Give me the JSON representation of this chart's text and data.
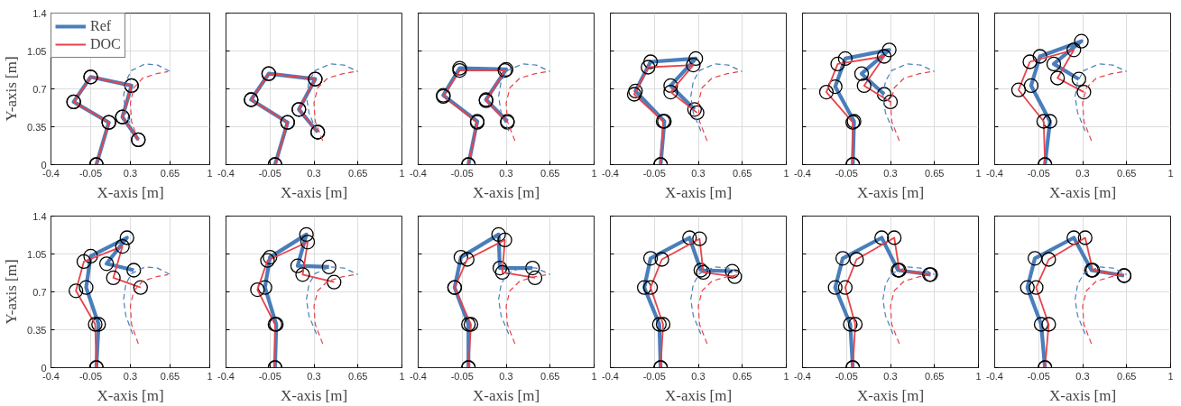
{
  "chart_data": [
    {
      "type": "line",
      "xlabel": "X-axis [m]",
      "ylabel": "Y-axis [m]",
      "xlim": [
        -0.4,
        1
      ],
      "ylim": [
        0,
        1.4
      ],
      "xticks": [
        -0.4,
        -0.05,
        0.3,
        0.65,
        1
      ],
      "yticks": [
        0,
        0.35,
        0.7,
        1.05,
        1.4
      ],
      "grid": true,
      "legend": "top left",
      "series": [
        {
          "name": "Ref",
          "color": "#4a7ebb",
          "marker": "circle",
          "x": [
            0,
            0.11,
            -0.2,
            -0.05,
            0.31,
            0.23,
            0.37
          ],
          "values": [
            0,
            0.39,
            0.58,
            0.81,
            0.73,
            0.44,
            0.23
          ]
        },
        {
          "name": "DOC",
          "color": "#e8434b",
          "marker": "circle",
          "x": [
            0,
            0.11,
            -0.2,
            -0.05,
            0.31,
            0.23,
            0.37
          ],
          "values": [
            0,
            0.39,
            0.58,
            0.81,
            0.73,
            0.44,
            0.23
          ]
        },
        {
          "color": "#4a7ebb",
          "line_style": "dashed",
          "x": [
            0.32,
            0.26,
            0.24,
            0.26,
            0.31,
            0.43,
            0.54,
            0.65
          ],
          "values": [
            0.31,
            0.48,
            0.63,
            0.77,
            0.87,
            0.93,
            0.92,
            0.86
          ]
        },
        {
          "color": "#e8434b",
          "line_style": "dashed",
          "x": [
            0.37,
            0.31,
            0.3,
            0.33,
            0.41,
            0.53,
            0.63
          ],
          "values": [
            0.22,
            0.4,
            0.57,
            0.71,
            0.8,
            0.84,
            0.86
          ]
        }
      ]
    },
    {
      "type": "line",
      "xlabel": "X-axis [m]",
      "xlim": [
        -0.4,
        1
      ],
      "ylim": [
        0,
        1.4
      ],
      "xticks": [
        -0.4,
        -0.05,
        0.3,
        0.65,
        1
      ],
      "yticks": [
        0,
        0.35,
        0.7,
        1.05,
        1.4
      ],
      "grid": true,
      "tick_labels": "x",
      "series": [
        {
          "color": "#4a7ebb",
          "marker": "circle",
          "x": [
            -0.01,
            0.09,
            -0.2,
            -0.06,
            0.31,
            0.18,
            0.33
          ],
          "values": [
            0,
            0.39,
            0.6,
            0.84,
            0.79,
            0.51,
            0.3
          ]
        },
        {
          "color": "#e8434b",
          "marker": "circle",
          "x": [
            -0.01,
            0.09,
            -0.2,
            -0.06,
            0.31,
            0.18,
            0.33
          ],
          "values": [
            0,
            0.39,
            0.6,
            0.84,
            0.79,
            0.51,
            0.3
          ]
        },
        {
          "color": "#4a7ebb",
          "line_style": "dashed",
          "x": [
            0.32,
            0.26,
            0.24,
            0.26,
            0.31,
            0.43,
            0.54,
            0.65
          ],
          "values": [
            0.31,
            0.48,
            0.63,
            0.77,
            0.87,
            0.93,
            0.92,
            0.86
          ]
        },
        {
          "color": "#e8434b",
          "line_style": "dashed",
          "x": [
            0.37,
            0.31,
            0.3,
            0.33,
            0.41,
            0.53,
            0.63
          ],
          "values": [
            0.22,
            0.4,
            0.57,
            0.71,
            0.8,
            0.84,
            0.86
          ]
        }
      ]
    },
    {
      "type": "line",
      "xlabel": "X-axis [m]",
      "xlim": [
        -0.4,
        1
      ],
      "ylim": [
        0,
        1.4
      ],
      "xticks": [
        -0.4,
        -0.05,
        0.3,
        0.65,
        1
      ],
      "yticks": [
        0,
        0.35,
        0.7,
        1.05,
        1.4
      ],
      "grid": true,
      "tick_labels": "x",
      "series": [
        {
          "color": "#4a7ebb",
          "marker": "circle",
          "x": [
            0,
            0.07,
            -0.2,
            -0.07,
            0.3,
            0.14,
            0.31
          ],
          "values": [
            0,
            0.4,
            0.64,
            0.89,
            0.88,
            0.6,
            0.4
          ]
        },
        {
          "color": "#e8434b",
          "marker": "circle",
          "x": [
            0,
            0.07,
            -0.2,
            -0.07,
            0.29,
            0.14,
            0.31
          ],
          "values": [
            0,
            0.39,
            0.63,
            0.87,
            0.87,
            0.59,
            0.39
          ]
        },
        {
          "color": "#4a7ebb",
          "line_style": "dashed",
          "x": [
            0.32,
            0.26,
            0.24,
            0.26,
            0.31,
            0.43,
            0.54,
            0.65
          ],
          "values": [
            0.31,
            0.48,
            0.63,
            0.77,
            0.87,
            0.93,
            0.92,
            0.86
          ]
        },
        {
          "color": "#e8434b",
          "line_style": "dashed",
          "x": [
            0.37,
            0.31,
            0.3,
            0.33,
            0.41,
            0.53,
            0.63
          ],
          "values": [
            0.22,
            0.4,
            0.57,
            0.71,
            0.8,
            0.84,
            0.86
          ]
        }
      ]
    },
    {
      "type": "line",
      "xlabel": "X-axis [m]",
      "xlim": [
        -0.4,
        1
      ],
      "ylim": [
        0,
        1.4
      ],
      "xticks": [
        -0.4,
        -0.05,
        0.3,
        0.65,
        1
      ],
      "yticks": [
        0,
        0.35,
        0.7,
        1.05,
        1.4
      ],
      "grid": true,
      "tick_labels": "x",
      "series": [
        {
          "color": "#4a7ebb",
          "marker": "circle",
          "x": [
            0,
            0.03,
            -0.2,
            -0.08,
            0.28,
            0.08,
            0.27
          ],
          "values": [
            0,
            0.4,
            0.68,
            0.95,
            0.98,
            0.73,
            0.51
          ]
        },
        {
          "color": "#e8434b",
          "marker": "circle",
          "x": [
            0,
            0.02,
            -0.21,
            -0.1,
            0.26,
            0.08,
            0.29
          ],
          "values": [
            0,
            0.4,
            0.65,
            0.9,
            0.92,
            0.67,
            0.48
          ]
        },
        {
          "color": "#4a7ebb",
          "line_style": "dashed",
          "x": [
            0.32,
            0.26,
            0.24,
            0.26,
            0.31,
            0.43,
            0.54,
            0.65
          ],
          "values": [
            0.31,
            0.48,
            0.63,
            0.77,
            0.87,
            0.93,
            0.92,
            0.86
          ]
        },
        {
          "color": "#e8434b",
          "line_style": "dashed",
          "x": [
            0.37,
            0.31,
            0.3,
            0.33,
            0.41,
            0.53,
            0.63
          ],
          "values": [
            0.22,
            0.4,
            0.57,
            0.71,
            0.8,
            0.84,
            0.86
          ]
        }
      ]
    },
    {
      "type": "line",
      "xlabel": "X-axis [m]",
      "xlim": [
        -0.4,
        1
      ],
      "ylim": [
        0,
        1.4
      ],
      "xticks": [
        -0.4,
        -0.05,
        0.3,
        0.65,
        1
      ],
      "yticks": [
        0,
        0.35,
        0.7,
        1.05,
        1.4
      ],
      "grid": true,
      "tick_labels": "x",
      "series": [
        {
          "color": "#4a7ebb",
          "marker": "circle",
          "x": [
            0,
            0.01,
            -0.14,
            -0.06,
            0.29,
            0.07,
            0.25
          ],
          "values": [
            0,
            0.4,
            0.72,
            0.98,
            1.06,
            0.84,
            0.65
          ]
        },
        {
          "color": "#e8434b",
          "marker": "circle",
          "x": [
            0,
            0,
            -0.21,
            -0.12,
            0.25,
            0.09,
            0.3
          ],
          "values": [
            0,
            0.39,
            0.67,
            0.93,
            1.0,
            0.73,
            0.58
          ]
        },
        {
          "color": "#4a7ebb",
          "line_style": "dashed",
          "x": [
            0.32,
            0.26,
            0.24,
            0.26,
            0.31,
            0.43,
            0.54,
            0.65
          ],
          "values": [
            0.31,
            0.48,
            0.63,
            0.77,
            0.87,
            0.93,
            0.92,
            0.86
          ]
        },
        {
          "color": "#e8434b",
          "line_style": "dashed",
          "x": [
            0.37,
            0.31,
            0.3,
            0.33,
            0.41,
            0.53,
            0.63
          ],
          "values": [
            0.22,
            0.4,
            0.57,
            0.71,
            0.8,
            0.84,
            0.86
          ]
        }
      ]
    },
    {
      "type": "line",
      "xlabel": "X-axis [m]",
      "xlim": [
        -0.4,
        1
      ],
      "ylim": [
        0,
        1.4
      ],
      "xticks": [
        -0.4,
        -0.05,
        0.3,
        0.65,
        1
      ],
      "yticks": [
        0,
        0.35,
        0.7,
        1.05,
        1.4
      ],
      "grid": true,
      "tick_labels": "x",
      "series": [
        {
          "color": "#4a7ebb",
          "marker": "circle",
          "x": [
            0,
            0.04,
            -0.11,
            -0.04,
            0.29,
            0.07,
            0.27
          ],
          "values": [
            0,
            0.4,
            0.73,
            1.0,
            1.14,
            0.93,
            0.79
          ]
        },
        {
          "color": "#e8434b",
          "marker": "circle",
          "x": [
            0,
            -0.01,
            -0.21,
            -0.12,
            0.23,
            0.1,
            0.31
          ],
          "values": [
            0,
            0.4,
            0.69,
            0.95,
            1.06,
            0.8,
            0.67
          ]
        },
        {
          "color": "#4a7ebb",
          "line_style": "dashed",
          "x": [
            0.32,
            0.26,
            0.24,
            0.26,
            0.31,
            0.43,
            0.54,
            0.65
          ],
          "values": [
            0.31,
            0.48,
            0.63,
            0.77,
            0.87,
            0.93,
            0.92,
            0.86
          ]
        },
        {
          "color": "#e8434b",
          "line_style": "dashed",
          "x": [
            0.37,
            0.31,
            0.3,
            0.33,
            0.41,
            0.53,
            0.63
          ],
          "values": [
            0.22,
            0.4,
            0.57,
            0.71,
            0.8,
            0.84,
            0.86
          ]
        }
      ]
    },
    {
      "type": "line",
      "xlabel": "X-axis [m]",
      "ylabel": "Y-axis [m]",
      "xlim": [
        -0.4,
        1
      ],
      "ylim": [
        0,
        1.4
      ],
      "xticks": [
        -0.4,
        -0.05,
        0.3,
        0.65,
        1
      ],
      "yticks": [
        0,
        0.35,
        0.7,
        1.05,
        1.4
      ],
      "grid": true,
      "series": [
        {
          "color": "#4a7ebb",
          "marker": "circle",
          "x": [
            0,
            0.02,
            -0.09,
            -0.05,
            0.27,
            0.09,
            0.33
          ],
          "values": [
            0,
            0.4,
            0.74,
            1.03,
            1.2,
            0.96,
            0.9
          ]
        },
        {
          "color": "#e8434b",
          "marker": "circle",
          "x": [
            0,
            -0.01,
            -0.18,
            -0.11,
            0.23,
            0.15,
            0.39
          ],
          "values": [
            0,
            0.4,
            0.71,
            0.98,
            1.12,
            0.83,
            0.74
          ]
        },
        {
          "color": "#4a7ebb",
          "line_style": "dashed",
          "x": [
            0.32,
            0.26,
            0.24,
            0.26,
            0.31,
            0.43,
            0.54,
            0.65
          ],
          "values": [
            0.31,
            0.48,
            0.63,
            0.77,
            0.87,
            0.93,
            0.92,
            0.86
          ]
        },
        {
          "color": "#e8434b",
          "line_style": "dashed",
          "x": [
            0.37,
            0.31,
            0.3,
            0.33,
            0.41,
            0.53,
            0.63
          ],
          "values": [
            0.22,
            0.4,
            0.57,
            0.71,
            0.8,
            0.84,
            0.86
          ]
        }
      ]
    },
    {
      "type": "line",
      "xlabel": "X-axis [m]",
      "xlim": [
        -0.4,
        1
      ],
      "ylim": [
        0,
        1.4
      ],
      "xticks": [
        -0.4,
        -0.05,
        0.3,
        0.65,
        1
      ],
      "yticks": [
        0,
        0.35,
        0.7,
        1.05,
        1.4
      ],
      "grid": true,
      "tick_labels": "x",
      "series": [
        {
          "color": "#4a7ebb",
          "marker": "circle",
          "x": [
            -0.01,
            0,
            -0.09,
            -0.05,
            0.24,
            0.17,
            0.42
          ],
          "values": [
            0,
            0.4,
            0.74,
            1.02,
            1.23,
            0.94,
            0.93
          ]
        },
        {
          "color": "#e8434b",
          "marker": "circle",
          "x": [
            -0.01,
            -0.01,
            -0.15,
            -0.07,
            0.25,
            0.21,
            0.46
          ],
          "values": [
            0,
            0.4,
            0.72,
            0.99,
            1.16,
            0.86,
            0.79
          ]
        },
        {
          "color": "#4a7ebb",
          "line_style": "dashed",
          "x": [
            0.32,
            0.26,
            0.24,
            0.26,
            0.31,
            0.43,
            0.54,
            0.65
          ],
          "values": [
            0.31,
            0.48,
            0.63,
            0.77,
            0.87,
            0.93,
            0.92,
            0.86
          ]
        },
        {
          "color": "#e8434b",
          "line_style": "dashed",
          "x": [
            0.37,
            0.31,
            0.3,
            0.33,
            0.41,
            0.53,
            0.63
          ],
          "values": [
            0.22,
            0.4,
            0.57,
            0.71,
            0.8,
            0.84,
            0.86
          ]
        }
      ]
    },
    {
      "type": "line",
      "xlabel": "X-axis [m]",
      "xlim": [
        -0.4,
        1
      ],
      "ylim": [
        0,
        1.4
      ],
      "xticks": [
        -0.4,
        -0.05,
        0.3,
        0.65,
        1
      ],
      "yticks": [
        0,
        0.35,
        0.7,
        1.05,
        1.4
      ],
      "grid": true,
      "tick_labels": "x",
      "series": [
        {
          "color": "#4a7ebb",
          "marker": "circle",
          "x": [
            0,
            0,
            -0.11,
            -0.06,
            0.24,
            0.25,
            0.51
          ],
          "values": [
            0,
            0.4,
            0.74,
            1.02,
            1.23,
            0.92,
            0.92
          ]
        },
        {
          "color": "#e8434b",
          "marker": "circle",
          "x": [
            0,
            0.02,
            -0.11,
            -0.01,
            0.29,
            0.27,
            0.53
          ],
          "values": [
            0,
            0.4,
            0.74,
            1.0,
            1.18,
            0.88,
            0.83
          ]
        },
        {
          "color": "#4a7ebb",
          "line_style": "dashed",
          "x": [
            0.32,
            0.26,
            0.24,
            0.26,
            0.31,
            0.43,
            0.54,
            0.65
          ],
          "values": [
            0.31,
            0.48,
            0.63,
            0.77,
            0.87,
            0.93,
            0.92,
            0.86
          ]
        },
        {
          "color": "#e8434b",
          "line_style": "dashed",
          "x": [
            0.37,
            0.31,
            0.3,
            0.33,
            0.41,
            0.53,
            0.63
          ],
          "values": [
            0.22,
            0.4,
            0.57,
            0.71,
            0.8,
            0.84,
            0.86
          ]
        }
      ]
    },
    {
      "type": "line",
      "xlabel": "X-axis [m]",
      "xlim": [
        -0.4,
        1
      ],
      "ylim": [
        0,
        1.4
      ],
      "xticks": [
        -0.4,
        -0.05,
        0.3,
        0.65,
        1
      ],
      "yticks": [
        0,
        0.35,
        0.7,
        1.05,
        1.4
      ],
      "grid": true,
      "tick_labels": "x",
      "series": [
        {
          "color": "#4a7ebb",
          "marker": "circle",
          "x": [
            0,
            -0.01,
            -0.13,
            -0.08,
            0.23,
            0.32,
            0.57
          ],
          "values": [
            0,
            0.4,
            0.74,
            1.01,
            1.2,
            0.9,
            0.89
          ]
        },
        {
          "color": "#e8434b",
          "marker": "circle",
          "x": [
            0,
            0.02,
            -0.08,
            0.01,
            0.31,
            0.34,
            0.59
          ],
          "values": [
            0,
            0.4,
            0.74,
            1.0,
            1.19,
            0.88,
            0.84
          ]
        },
        {
          "color": "#4a7ebb",
          "line_style": "dashed",
          "x": [
            0.32,
            0.26,
            0.24,
            0.26,
            0.31,
            0.43,
            0.54,
            0.65
          ],
          "values": [
            0.31,
            0.48,
            0.63,
            0.77,
            0.87,
            0.93,
            0.92,
            0.86
          ]
        },
        {
          "color": "#e8434b",
          "line_style": "dashed",
          "x": [
            0.37,
            0.31,
            0.3,
            0.33,
            0.41,
            0.53,
            0.63
          ],
          "values": [
            0.22,
            0.4,
            0.57,
            0.71,
            0.8,
            0.84,
            0.86
          ]
        }
      ]
    },
    {
      "type": "line",
      "xlabel": "X-axis [m]",
      "xlim": [
        -0.4,
        1
      ],
      "ylim": [
        0,
        1.4
      ],
      "xticks": [
        -0.4,
        -0.05,
        0.3,
        0.65,
        1
      ],
      "yticks": [
        0,
        0.35,
        0.7,
        1.05,
        1.4
      ],
      "grid": true,
      "tick_labels": "x",
      "series": [
        {
          "color": "#4a7ebb",
          "marker": "circle",
          "x": [
            0,
            -0.02,
            -0.14,
            -0.08,
            0.23,
            0.36,
            0.62
          ],
          "values": [
            0,
            0.4,
            0.74,
            1.01,
            1.2,
            0.9,
            0.86
          ]
        },
        {
          "color": "#e8434b",
          "marker": "circle",
          "x": [
            0,
            0.02,
            -0.06,
            0.03,
            0.33,
            0.37,
            0.61
          ],
          "values": [
            0,
            0.4,
            0.74,
            1.0,
            1.2,
            0.9,
            0.86
          ]
        },
        {
          "color": "#4a7ebb",
          "line_style": "dashed",
          "x": [
            0.32,
            0.26,
            0.24,
            0.26,
            0.31,
            0.43,
            0.54,
            0.65
          ],
          "values": [
            0.31,
            0.48,
            0.63,
            0.77,
            0.87,
            0.93,
            0.92,
            0.86
          ]
        },
        {
          "color": "#e8434b",
          "line_style": "dashed",
          "x": [
            0.37,
            0.31,
            0.3,
            0.33,
            0.41,
            0.53,
            0.63
          ],
          "values": [
            0.22,
            0.4,
            0.57,
            0.71,
            0.8,
            0.84,
            0.86
          ]
        }
      ]
    },
    {
      "type": "line",
      "xlabel": "X-axis [m]",
      "xlim": [
        -0.4,
        1
      ],
      "ylim": [
        0,
        1.4
      ],
      "xticks": [
        -0.4,
        -0.05,
        0.3,
        0.65,
        1
      ],
      "yticks": [
        0,
        0.35,
        0.7,
        1.05,
        1.4
      ],
      "grid": true,
      "tick_labels": "x",
      "series": [
        {
          "color": "#4a7ebb",
          "marker": "circle",
          "x": [
            0,
            -0.03,
            -0.14,
            -0.08,
            0.23,
            0.37,
            0.63
          ],
          "values": [
            0,
            0.4,
            0.74,
            1.01,
            1.2,
            0.9,
            0.85
          ]
        },
        {
          "color": "#e8434b",
          "marker": "circle",
          "x": [
            0,
            0.03,
            -0.07,
            0.03,
            0.32,
            0.38,
            0.63
          ],
          "values": [
            0,
            0.4,
            0.74,
            1.0,
            1.2,
            0.9,
            0.85
          ]
        },
        {
          "color": "#4a7ebb",
          "line_style": "dashed",
          "x": [
            0.32,
            0.26,
            0.24,
            0.26,
            0.31,
            0.43,
            0.54,
            0.65
          ],
          "values": [
            0.31,
            0.48,
            0.63,
            0.77,
            0.87,
            0.93,
            0.92,
            0.86
          ]
        },
        {
          "color": "#e8434b",
          "line_style": "dashed",
          "x": [
            0.37,
            0.31,
            0.3,
            0.33,
            0.41,
            0.53,
            0.63
          ],
          "values": [
            0.22,
            0.4,
            0.57,
            0.71,
            0.8,
            0.84,
            0.86
          ]
        }
      ]
    }
  ]
}
